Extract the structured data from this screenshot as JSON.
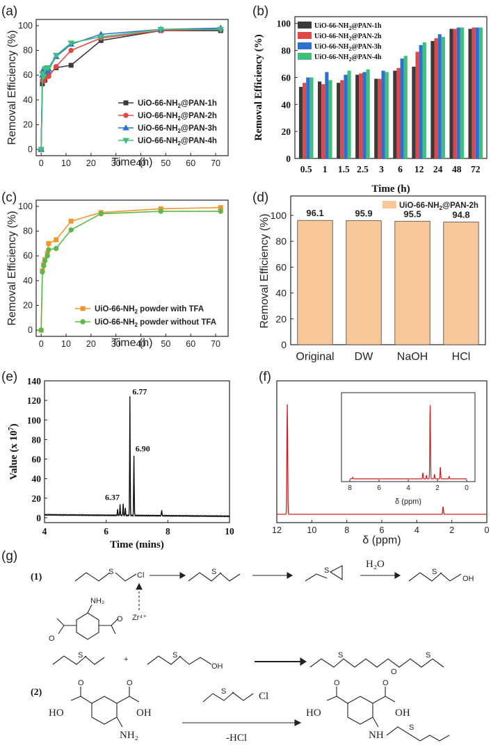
{
  "panels": {
    "a": "(a)",
    "b": "(b)",
    "c": "(c)",
    "d": "(d)",
    "e": "(e)",
    "f": "(f)",
    "g": "(g)"
  },
  "colors": {
    "black": "#3a3a3a",
    "red": "#e04848",
    "blue": "#2f6fd0",
    "green": "#3fbf7a",
    "orange": "#f0962e",
    "lgreen": "#5cb848",
    "peach": "#f8c89a",
    "nmr": "#cc1e1e"
  },
  "chart_data": [
    {
      "id": "a",
      "type": "line",
      "xlabel": "Time (h)",
      "ylabel": "Removal Efficiency (%)",
      "xlim": [
        -2,
        75
      ],
      "ylim": [
        -5,
        105
      ],
      "xticks": [
        0,
        10,
        20,
        30,
        40,
        50,
        60,
        70
      ],
      "yticks": [
        0,
        20,
        40,
        60,
        80,
        100
      ],
      "legend_position": "bottom-right",
      "x": [
        0,
        0.5,
        1,
        1.5,
        2.5,
        3,
        6,
        12,
        24,
        48,
        72
      ],
      "series": [
        {
          "name": "UiO-66-NH2@PAN-1h",
          "color": "#3a3a3a",
          "marker": "square",
          "values": [
            0,
            53,
            57,
            56,
            59,
            60,
            66,
            68,
            88,
            96,
            96
          ]
        },
        {
          "name": "UiO-66-NH2@PAN-2h",
          "color": "#e04848",
          "marker": "circle",
          "values": [
            0,
            56,
            55,
            58,
            62,
            59,
            67,
            80,
            90,
            96,
            97
          ]
        },
        {
          "name": "UiO-66-NH2@PAN-3h",
          "color": "#2f6fd0",
          "marker": "triangle",
          "values": [
            0,
            60,
            65,
            62,
            64,
            65,
            75,
            85,
            93,
            97,
            98
          ]
        },
        {
          "name": "UiO-66-NH2@PAN-4h",
          "color": "#3fbf7a",
          "marker": "triangle-down",
          "values": [
            0,
            61,
            59,
            65,
            66,
            66,
            76,
            86,
            91,
            97,
            97
          ]
        }
      ]
    },
    {
      "id": "b",
      "type": "bar",
      "xlabel": "Time (h)",
      "ylabel": "Removal Efficiency (%)",
      "ylim": [
        0,
        105
      ],
      "yticks": [
        0,
        20,
        40,
        60,
        80,
        100
      ],
      "legend_position": "top-left",
      "categories": [
        "0.5",
        "1",
        "1.5",
        "2.5",
        "3",
        "6",
        "12",
        "24",
        "48",
        "72"
      ],
      "series": [
        {
          "name": "UiO-66-NH2@PAN-1h",
          "color": "#3a3a3a",
          "values": [
            53,
            57,
            56,
            62,
            59,
            65,
            68,
            87,
            96,
            96
          ]
        },
        {
          "name": "UiO-66-NH2@PAN-2h",
          "color": "#e04848",
          "values": [
            56,
            55,
            58,
            63,
            59,
            67,
            79,
            89,
            96,
            97
          ]
        },
        {
          "name": "UiO-66-NH2@PAN-3h",
          "color": "#2f6fd0",
          "values": [
            60,
            64,
            62,
            64,
            65,
            74,
            84,
            92,
            97,
            97
          ]
        },
        {
          "name": "UiO-66-NH2@PAN-4h",
          "color": "#3fbf7a",
          "values": [
            60,
            58,
            65,
            66,
            64,
            76,
            86,
            90,
            97,
            97
          ]
        }
      ]
    },
    {
      "id": "c",
      "type": "line",
      "xlabel": "Time (h)",
      "ylabel": "Removal Efficiency (%)",
      "xlim": [
        -2,
        75
      ],
      "ylim": [
        -5,
        105
      ],
      "xticks": [
        0,
        10,
        20,
        30,
        40,
        50,
        60,
        70
      ],
      "yticks": [
        0,
        20,
        40,
        60,
        80,
        100
      ],
      "legend_position": "bottom-right",
      "x": [
        0,
        0.5,
        1,
        1.5,
        2.5,
        3,
        6,
        12,
        24,
        48,
        72
      ],
      "series": [
        {
          "name": "UiO-66-NH2 powder with TFA",
          "color": "#f0962e",
          "marker": "square",
          "values": [
            0,
            48,
            53,
            57,
            62,
            70,
            73,
            88,
            95,
            98,
            99
          ]
        },
        {
          "name": "UiO-66-NH2 powder without TFA",
          "color": "#5cb848",
          "marker": "circle",
          "values": [
            0,
            47,
            52,
            56,
            60,
            65,
            66,
            81,
            94,
            96,
            96
          ]
        }
      ]
    },
    {
      "id": "d",
      "type": "bar",
      "xlabel": "",
      "ylabel": "Removal Efficiency (%)",
      "ylim": [
        0,
        115
      ],
      "yticks": [
        0,
        20,
        40,
        60,
        80,
        100
      ],
      "legend_position": "top-right",
      "categories": [
        "Original",
        "DW",
        "NaOH",
        "HCl"
      ],
      "series": [
        {
          "name": "UiO-66-NH2@PAN-2h",
          "color": "#f8c89a",
          "values": [
            96.1,
            95.9,
            95.5,
            94.8
          ]
        }
      ],
      "data_labels": [
        "96.1",
        "95.9",
        "95.5",
        "94.8"
      ]
    },
    {
      "id": "e",
      "type": "line",
      "xlabel": "Time (mins)",
      "ylabel": "Value (x 10^7)",
      "xlim": [
        4,
        10
      ],
      "ylim": [
        -5,
        140
      ],
      "xticks": [
        4,
        6,
        8,
        10
      ],
      "yticks": [
        0,
        20,
        40,
        60,
        80,
        100,
        120,
        140
      ],
      "peak_annotations": [
        "6.37",
        "6.77",
        "6.90"
      ],
      "peaks": [
        {
          "x": 6.37,
          "y": 6
        },
        {
          "x": 6.45,
          "y": 11
        },
        {
          "x": 6.55,
          "y": 12
        },
        {
          "x": 6.62,
          "y": 8
        },
        {
          "x": 6.77,
          "y": 122
        },
        {
          "x": 6.9,
          "y": 61
        },
        {
          "x": 7.8,
          "y": 6
        }
      ],
      "baseline": 3
    },
    {
      "id": "f",
      "type": "line",
      "xlabel": "δ (ppm)",
      "xlim": [
        12,
        0
      ],
      "xticks": [
        12,
        10,
        8,
        6,
        4,
        2,
        0
      ],
      "peaks": [
        {
          "x": 11.4,
          "h": 1.0
        },
        {
          "x": 2.5,
          "h": 0.07
        }
      ],
      "inset": {
        "xlabel": "δ (ppm)",
        "xlim": [
          8,
          0
        ],
        "xticks": [
          8,
          6,
          4,
          2,
          0
        ],
        "peaks": [
          {
            "x": 3.0,
            "h": 0.08
          },
          {
            "x": 2.75,
            "h": 0.05
          },
          {
            "x": 2.5,
            "h": 1.0
          },
          {
            "x": 2.2,
            "h": 0.06
          },
          {
            "x": 1.8,
            "h": 0.16
          },
          {
            "x": 1.2,
            "h": 0.03
          },
          {
            "x": 7.8,
            "h": 0.02
          }
        ]
      }
    }
  ],
  "scheme": {
    "step1": "(1)",
    "step2": "(2)",
    "h2o": "H₂O",
    "oh": "OH",
    "cl": "Cl",
    "nh2": "NH₂",
    "zr": "Zr⁴⁺",
    "o_minus": "O",
    "ho": "HO",
    "nh": "NH",
    "s": "S",
    "o": "O",
    "plus": "+",
    "minus_hcl": "-HCl"
  }
}
